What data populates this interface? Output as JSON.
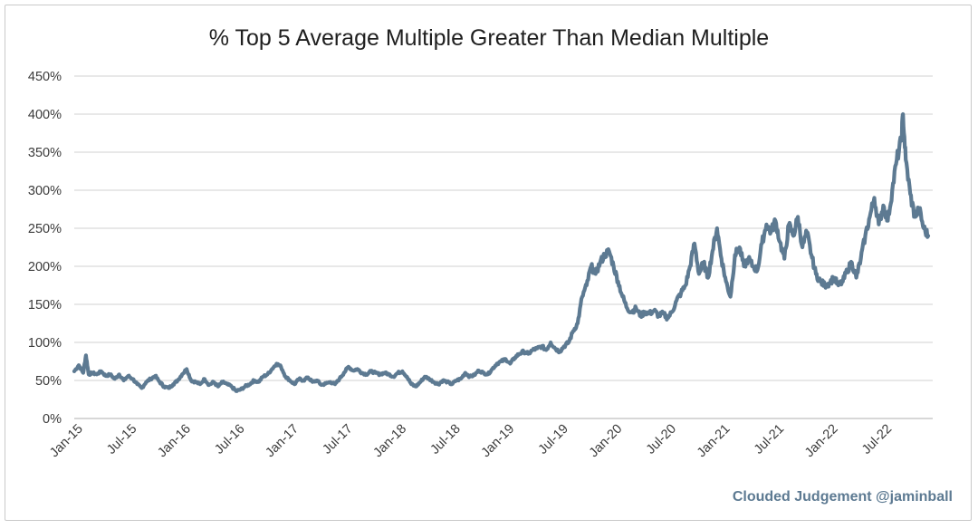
{
  "chart_data": {
    "type": "line",
    "title": "% Top 5 Average Multiple Greater Than Median Multiple",
    "xlabel": "",
    "ylabel": "",
    "ylim": [
      0,
      450
    ],
    "y_ticks": [
      "0%",
      "50%",
      "100%",
      "150%",
      "200%",
      "250%",
      "300%",
      "350%",
      "400%",
      "450%"
    ],
    "x_ticks": [
      "Jan-15",
      "Jul-15",
      "Jan-16",
      "Jul-16",
      "Jan-17",
      "Jul-17",
      "Jan-18",
      "Jul-18",
      "Jan-19",
      "Jul-19",
      "Jan-20",
      "Jul-20",
      "Jan-21",
      "Jul-21",
      "Jan-22",
      "Jul-22"
    ],
    "x_range_months": [
      0,
      95.5
    ],
    "grid": true,
    "series": [
      {
        "name": "% Top 5 Average Multiple Greater Than Median Multiple",
        "color": "#5d7a92",
        "points": [
          [
            0,
            62
          ],
          [
            0.5,
            70
          ],
          [
            1,
            60
          ],
          [
            1.3,
            83
          ],
          [
            1.6,
            58
          ],
          [
            2,
            60
          ],
          [
            2.5,
            58
          ],
          [
            3,
            62
          ],
          [
            3.5,
            56
          ],
          [
            4,
            58
          ],
          [
            4.5,
            52
          ],
          [
            5,
            58
          ],
          [
            5.5,
            50
          ],
          [
            6,
            56
          ],
          [
            6.5,
            52
          ],
          [
            7,
            45
          ],
          [
            7.5,
            40
          ],
          [
            8,
            48
          ],
          [
            8.5,
            52
          ],
          [
            9,
            56
          ],
          [
            9.5,
            48
          ],
          [
            10,
            42
          ],
          [
            10.5,
            40
          ],
          [
            11,
            45
          ],
          [
            11.5,
            50
          ],
          [
            12,
            58
          ],
          [
            12.5,
            65
          ],
          [
            13,
            50
          ],
          [
            13.5,
            48
          ],
          [
            14,
            45
          ],
          [
            14.5,
            52
          ],
          [
            15,
            44
          ],
          [
            15.5,
            48
          ],
          [
            16,
            42
          ],
          [
            16.5,
            48
          ],
          [
            17,
            45
          ],
          [
            17.5,
            42
          ],
          [
            18,
            36
          ],
          [
            18.5,
            38
          ],
          [
            19,
            42
          ],
          [
            19.5,
            45
          ],
          [
            20,
            50
          ],
          [
            20.5,
            48
          ],
          [
            21,
            55
          ],
          [
            21.5,
            58
          ],
          [
            22,
            65
          ],
          [
            22.5,
            72
          ],
          [
            23,
            68
          ],
          [
            23.5,
            55
          ],
          [
            24,
            50
          ],
          [
            24.5,
            45
          ],
          [
            25,
            52
          ],
          [
            25.5,
            50
          ],
          [
            26,
            54
          ],
          [
            26.5,
            48
          ],
          [
            27,
            50
          ],
          [
            27.5,
            44
          ],
          [
            28,
            46
          ],
          [
            28.5,
            48
          ],
          [
            29,
            45
          ],
          [
            29.5,
            52
          ],
          [
            30,
            60
          ],
          [
            30.5,
            68
          ],
          [
            31,
            63
          ],
          [
            31.5,
            65
          ],
          [
            32,
            60
          ],
          [
            32.5,
            58
          ],
          [
            33,
            62
          ],
          [
            33.5,
            60
          ],
          [
            34,
            58
          ],
          [
            34.5,
            60
          ],
          [
            35,
            58
          ],
          [
            35.5,
            55
          ],
          [
            36,
            60
          ],
          [
            36.5,
            62
          ],
          [
            37,
            55
          ],
          [
            37.5,
            45
          ],
          [
            38,
            42
          ],
          [
            38.5,
            48
          ],
          [
            39,
            55
          ],
          [
            39.5,
            52
          ],
          [
            40,
            48
          ],
          [
            40.5,
            45
          ],
          [
            41,
            50
          ],
          [
            41.5,
            48
          ],
          [
            42,
            45
          ],
          [
            42.5,
            50
          ],
          [
            43,
            52
          ],
          [
            43.5,
            60
          ],
          [
            44,
            55
          ],
          [
            44.5,
            57
          ],
          [
            45,
            63
          ],
          [
            45.5,
            60
          ],
          [
            46,
            58
          ],
          [
            46.5,
            65
          ],
          [
            47,
            72
          ],
          [
            47.5,
            75
          ],
          [
            48,
            78
          ],
          [
            48.5,
            72
          ],
          [
            49,
            80
          ],
          [
            49.5,
            85
          ],
          [
            50,
            88
          ],
          [
            50.5,
            85
          ],
          [
            51,
            90
          ],
          [
            51.5,
            92
          ],
          [
            52,
            95
          ],
          [
            52.5,
            90
          ],
          [
            53,
            100
          ],
          [
            53.5,
            92
          ],
          [
            54,
            88
          ],
          [
            54.5,
            95
          ],
          [
            55,
            100
          ],
          [
            55.5,
            115
          ],
          [
            56,
            125
          ],
          [
            56.5,
            160
          ],
          [
            57,
            175
          ],
          [
            57.5,
            200
          ],
          [
            58,
            190
          ],
          [
            58.5,
            205
          ],
          [
            59,
            215
          ],
          [
            59.5,
            220
          ],
          [
            60,
            200
          ],
          [
            60.5,
            180
          ],
          [
            61,
            160
          ],
          [
            61.5,
            145
          ],
          [
            62,
            140
          ],
          [
            62.5,
            145
          ],
          [
            63,
            135
          ],
          [
            63.5,
            140
          ],
          [
            64,
            138
          ],
          [
            64.5,
            142
          ],
          [
            65,
            135
          ],
          [
            65.5,
            138
          ],
          [
            66,
            132
          ],
          [
            66.5,
            140
          ],
          [
            67,
            155
          ],
          [
            67.5,
            165
          ],
          [
            68,
            175
          ],
          [
            68.5,
            200
          ],
          [
            69,
            230
          ],
          [
            69.5,
            190
          ],
          [
            70,
            205
          ],
          [
            70.5,
            185
          ],
          [
            71,
            220
          ],
          [
            71.5,
            250
          ],
          [
            72,
            210
          ],
          [
            72.5,
            180
          ],
          [
            73,
            160
          ],
          [
            73.5,
            215
          ],
          [
            74,
            225
          ],
          [
            74.5,
            200
          ],
          [
            75,
            210
          ],
          [
            75.5,
            200
          ],
          [
            76,
            195
          ],
          [
            76.5,
            230
          ],
          [
            77,
            255
          ],
          [
            77.5,
            245
          ],
          [
            78,
            260
          ],
          [
            78.5,
            232
          ],
          [
            79,
            210
          ],
          [
            79.5,
            255
          ],
          [
            80,
            240
          ],
          [
            80.5,
            265
          ],
          [
            81,
            225
          ],
          [
            81.5,
            245
          ],
          [
            82,
            215
          ],
          [
            82.5,
            190
          ],
          [
            83,
            180
          ],
          [
            83.5,
            175
          ],
          [
            84,
            178
          ],
          [
            84.5,
            185
          ],
          [
            85,
            175
          ],
          [
            85.5,
            180
          ],
          [
            86,
            195
          ],
          [
            86.5,
            205
          ],
          [
            87,
            185
          ],
          [
            87.5,
            210
          ],
          [
            88,
            240
          ],
          [
            88.5,
            265
          ],
          [
            89,
            290
          ],
          [
            89.5,
            255
          ],
          [
            90,
            280
          ],
          [
            90.5,
            260
          ],
          [
            91,
            300
          ],
          [
            91.5,
            340
          ],
          [
            92,
            365
          ],
          [
            92.2,
            400
          ],
          [
            92.5,
            340
          ],
          [
            93,
            295
          ],
          [
            93.5,
            265
          ],
          [
            94,
            275
          ],
          [
            94.5,
            250
          ],
          [
            95,
            240
          ]
        ]
      }
    ]
  },
  "branding": {
    "credit": "Clouded Judgement @jaminball",
    "credit_color": "#5d7a92"
  }
}
